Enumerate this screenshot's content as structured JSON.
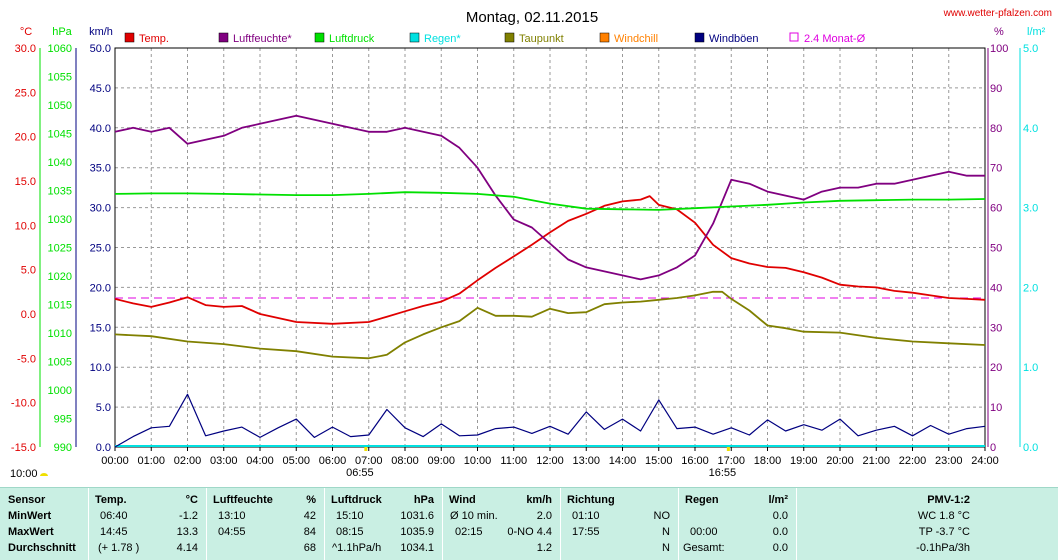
{
  "site": "www.wetter-pfalzen.com",
  "colors": {
    "temp": "#e00000",
    "humidity": "#800080",
    "pressure": "#00e000",
    "rain": "#00e0e0",
    "dew": "#808000",
    "windchill": "#ff8000",
    "gust": "#000080",
    "avg": "#e000e0"
  },
  "chart_data": {
    "type": "line",
    "title": "Montag, 02.11.2015",
    "x_ticks": [
      "00:00",
      "01:00",
      "02:00",
      "03:00",
      "04:00",
      "05:00",
      "06:00",
      "07:00",
      "08:00",
      "09:00",
      "10:00",
      "11:00",
      "12:00",
      "13:00",
      "14:00",
      "15:00",
      "16:00",
      "17:00",
      "18:00",
      "19:00",
      "20:00",
      "21:00",
      "22:00",
      "23:00",
      "24:00"
    ],
    "x_range": [
      0,
      24
    ],
    "axes": {
      "temp": {
        "unit": "°C",
        "range": [
          -15,
          30
        ],
        "ticks": [
          "30.0",
          "25.0",
          "20.0",
          "15.0",
          "10.0",
          "5.0",
          "0.0",
          "-5.0",
          "-10.0",
          "-15.0"
        ]
      },
      "pressure": {
        "unit": "hPa",
        "range": [
          990,
          1060
        ],
        "ticks": [
          "1060",
          "1055",
          "1050",
          "1045",
          "1040",
          "1035",
          "1030",
          "1025",
          "1020",
          "1015",
          "1010",
          "1005",
          "1000",
          "995",
          "990"
        ]
      },
      "wind": {
        "unit": "km/h",
        "range": [
          0,
          50
        ],
        "ticks": [
          "50.0",
          "45.0",
          "40.0",
          "35.0",
          "30.0",
          "25.0",
          "20.0",
          "15.0",
          "10.0",
          "5.0",
          "0.0"
        ]
      },
      "humidity": {
        "unit": "%",
        "range": [
          0,
          100
        ],
        "ticks": [
          "100",
          "90",
          "80",
          "70",
          "60",
          "50",
          "40",
          "30",
          "20",
          "10",
          "0"
        ]
      },
      "rain": {
        "unit": "l/m²",
        "range": [
          0,
          5
        ],
        "ticks": [
          "5.0",
          "4.0",
          "3.0",
          "2.0",
          "1.0",
          "0.0"
        ]
      }
    },
    "legend": [
      "Temp.",
      "Luftfeuchte*",
      "Luftdruck",
      "Regen*",
      "Taupunkt",
      "Windchill",
      "Windböen",
      "2.4 Monat-Ø"
    ],
    "series": [
      {
        "name": "Temp.",
        "key": "temp",
        "axis": "temp",
        "x": [
          0,
          0.5,
          1,
          1.5,
          2,
          2.5,
          3,
          3.5,
          4,
          5,
          6,
          7,
          7.5,
          8,
          8.5,
          9,
          9.5,
          10,
          10.5,
          11,
          11.5,
          12,
          12.5,
          13,
          13.5,
          14,
          14.5,
          14.75,
          15,
          15.5,
          16,
          16.5,
          17,
          17.5,
          18,
          18.5,
          19,
          19.5,
          20,
          20.5,
          21,
          21.5,
          22,
          22.5,
          23,
          23.5,
          24
        ],
        "y": [
          1.7,
          1.2,
          0.8,
          1.3,
          1.9,
          1.0,
          0.8,
          0.9,
          0.0,
          -0.9,
          -1.1,
          -0.9,
          -0.3,
          0.3,
          0.9,
          1.4,
          2.3,
          3.8,
          5.2,
          6.5,
          7.8,
          9.2,
          10.5,
          11.3,
          12.2,
          12.7,
          12.9,
          13.3,
          12.3,
          11.8,
          10.3,
          7.8,
          6.3,
          5.7,
          5.3,
          5.2,
          4.7,
          4.1,
          3.3,
          3.1,
          3.0,
          2.6,
          2.4,
          2.1,
          1.8,
          1.7,
          1.6
        ]
      },
      {
        "name": "Luftfeuchte*",
        "key": "humidity",
        "axis": "humidity",
        "x": [
          0,
          0.5,
          1,
          1.5,
          2,
          2.5,
          3,
          3.5,
          4,
          4.5,
          5,
          5.5,
          6,
          6.5,
          7,
          7.5,
          8,
          8.5,
          9,
          9.5,
          10,
          10.5,
          11,
          11.5,
          12,
          12.5,
          13,
          13.5,
          14,
          14.5,
          15,
          15.5,
          16,
          16.5,
          17,
          17.5,
          18,
          18.5,
          19,
          19.5,
          20,
          20.5,
          21,
          21.5,
          22,
          22.5,
          23,
          23.5,
          24
        ],
        "y": [
          79,
          80,
          79,
          80,
          76,
          77,
          78,
          80,
          81,
          82,
          83,
          82,
          81,
          80,
          79,
          79,
          80,
          79,
          78,
          75,
          70,
          63,
          57,
          55,
          51,
          47,
          45,
          44,
          43,
          42,
          43,
          45,
          48,
          56,
          67,
          66,
          64,
          63,
          62,
          64,
          65,
          65,
          66,
          66,
          67,
          68,
          69,
          68,
          68
        ]
      },
      {
        "name": "Luftdruck",
        "key": "pressure",
        "axis": "pressure",
        "x": [
          0,
          1,
          2,
          3,
          4,
          5,
          6,
          7,
          8,
          9,
          10,
          11,
          12,
          13,
          14,
          15,
          16,
          17,
          18,
          19,
          20,
          21,
          22,
          23,
          24
        ],
        "y": [
          1034.4,
          1034.5,
          1034.5,
          1034.4,
          1034.3,
          1034.2,
          1034.2,
          1034.4,
          1034.7,
          1034.6,
          1034.4,
          1033.9,
          1032.7,
          1031.8,
          1031.7,
          1031.6,
          1031.9,
          1032.2,
          1032.5,
          1032.9,
          1033.2,
          1033.3,
          1033.4,
          1033.4,
          1033.5
        ]
      },
      {
        "name": "Taupunkt",
        "key": "dew",
        "axis": "temp",
        "x": [
          0,
          1,
          2,
          3,
          4,
          5,
          6,
          7,
          7.5,
          8,
          8.5,
          9,
          9.5,
          10,
          10.5,
          11,
          11.5,
          12,
          12.5,
          13,
          13.5,
          14,
          14.5,
          15,
          15.5,
          16,
          16.5,
          16.75,
          17,
          17.5,
          18,
          18.5,
          19,
          20,
          21,
          22,
          23,
          24
        ],
        "y": [
          -2.3,
          -2.5,
          -3.1,
          -3.4,
          -3.9,
          -4.2,
          -4.8,
          -5.0,
          -4.6,
          -3.2,
          -2.3,
          -1.5,
          -0.8,
          0.7,
          -0.2,
          -0.2,
          -0.3,
          0.6,
          0.1,
          0.2,
          1.1,
          1.3,
          1.4,
          1.6,
          1.8,
          2.1,
          2.5,
          2.5,
          1.7,
          0.4,
          -1.3,
          -1.6,
          -2.0,
          -2.1,
          -2.7,
          -3.1,
          -3.3,
          -3.5
        ]
      },
      {
        "name": "Windböen",
        "key": "gust",
        "axis": "wind",
        "x": [
          0,
          0.5,
          1,
          1.5,
          2,
          2.5,
          3,
          3.5,
          4,
          4.5,
          5,
          5.5,
          6,
          6.5,
          7,
          7.5,
          8,
          8.5,
          9,
          9.5,
          10,
          10.5,
          11,
          11.5,
          12,
          12.5,
          13,
          13.5,
          14,
          14.5,
          15,
          15.5,
          16,
          16.5,
          17,
          17.5,
          18,
          18.5,
          19,
          19.5,
          20,
          20.5,
          21,
          21.5,
          22,
          22.5,
          23,
          23.5,
          24
        ],
        "y": [
          0,
          1.3,
          2.4,
          2.6,
          6.6,
          1.4,
          2.0,
          2.5,
          1.2,
          2.4,
          3.5,
          1.2,
          2.5,
          1.3,
          1.5,
          4.7,
          2.4,
          1.3,
          2.9,
          1.4,
          1.5,
          2.3,
          2.5,
          1.7,
          2.6,
          1.6,
          4.4,
          2.2,
          3.5,
          2.0,
          5.9,
          2.3,
          2.5,
          1.6,
          2.4,
          1.5,
          3.4,
          2.0,
          2.8,
          2.1,
          3.5,
          1.4,
          2.1,
          2.6,
          1.4,
          2.7,
          1.6,
          2.3,
          2.6
        ]
      }
    ],
    "reference_line": {
      "name": "2.4 Monat-Ø",
      "key": "avg",
      "axis": "temp",
      "y": 1.8
    },
    "markers": [
      {
        "label": "06:55",
        "x": 6.92,
        "symbol": "sunrise"
      },
      {
        "label": "16:55",
        "x": 16.92,
        "symbol": "sunset"
      }
    ],
    "start_label": "10:00"
  },
  "table": {
    "sensor": {
      "header": "Sensor",
      "rows": [
        "MinWert",
        "MaxWert",
        "Durchschnitt"
      ]
    },
    "temp": {
      "header": "Temp.",
      "unit": "°C",
      "rows": [
        [
          "06:40",
          "-1.2"
        ],
        [
          "14:45",
          "13.3"
        ],
        [
          "(+ 1.78 )",
          "4.14"
        ]
      ]
    },
    "hum": {
      "header": "Luftfeuchte",
      "unit": "%",
      "rows": [
        [
          "13:10",
          "42"
        ],
        [
          "04:55",
          "84"
        ],
        [
          "",
          "68"
        ]
      ]
    },
    "press": {
      "header": "Luftdruck",
      "unit": "hPa",
      "rows": [
        [
          "15:10",
          "1031.6"
        ],
        [
          "08:15",
          "1035.9"
        ],
        [
          "^1.1hPa/h",
          "1034.1"
        ]
      ]
    },
    "wind": {
      "header": "Wind",
      "unit": "km/h",
      "rows": [
        [
          "Ø 10 min.",
          "2.0"
        ],
        [
          "02:15",
          "0-NO 4.4"
        ],
        [
          "",
          "1.2"
        ]
      ]
    },
    "dir": {
      "header": "Richtung",
      "rows": [
        [
          "01:10",
          "NO"
        ],
        [
          "17:55",
          "N"
        ],
        [
          "",
          "N"
        ]
      ]
    },
    "rain": {
      "header": "Regen",
      "unit": "l/m²",
      "rows": [
        [
          "",
          "0.0"
        ],
        [
          "00:00",
          "0.0"
        ],
        [
          "Gesamt:",
          "0.0"
        ]
      ]
    },
    "pmv": {
      "header": "PMV-1:2",
      "rows": [
        "WC 1.8 °C",
        "TP -3.7 °C",
        "-0.1hPa/3h"
      ]
    }
  }
}
